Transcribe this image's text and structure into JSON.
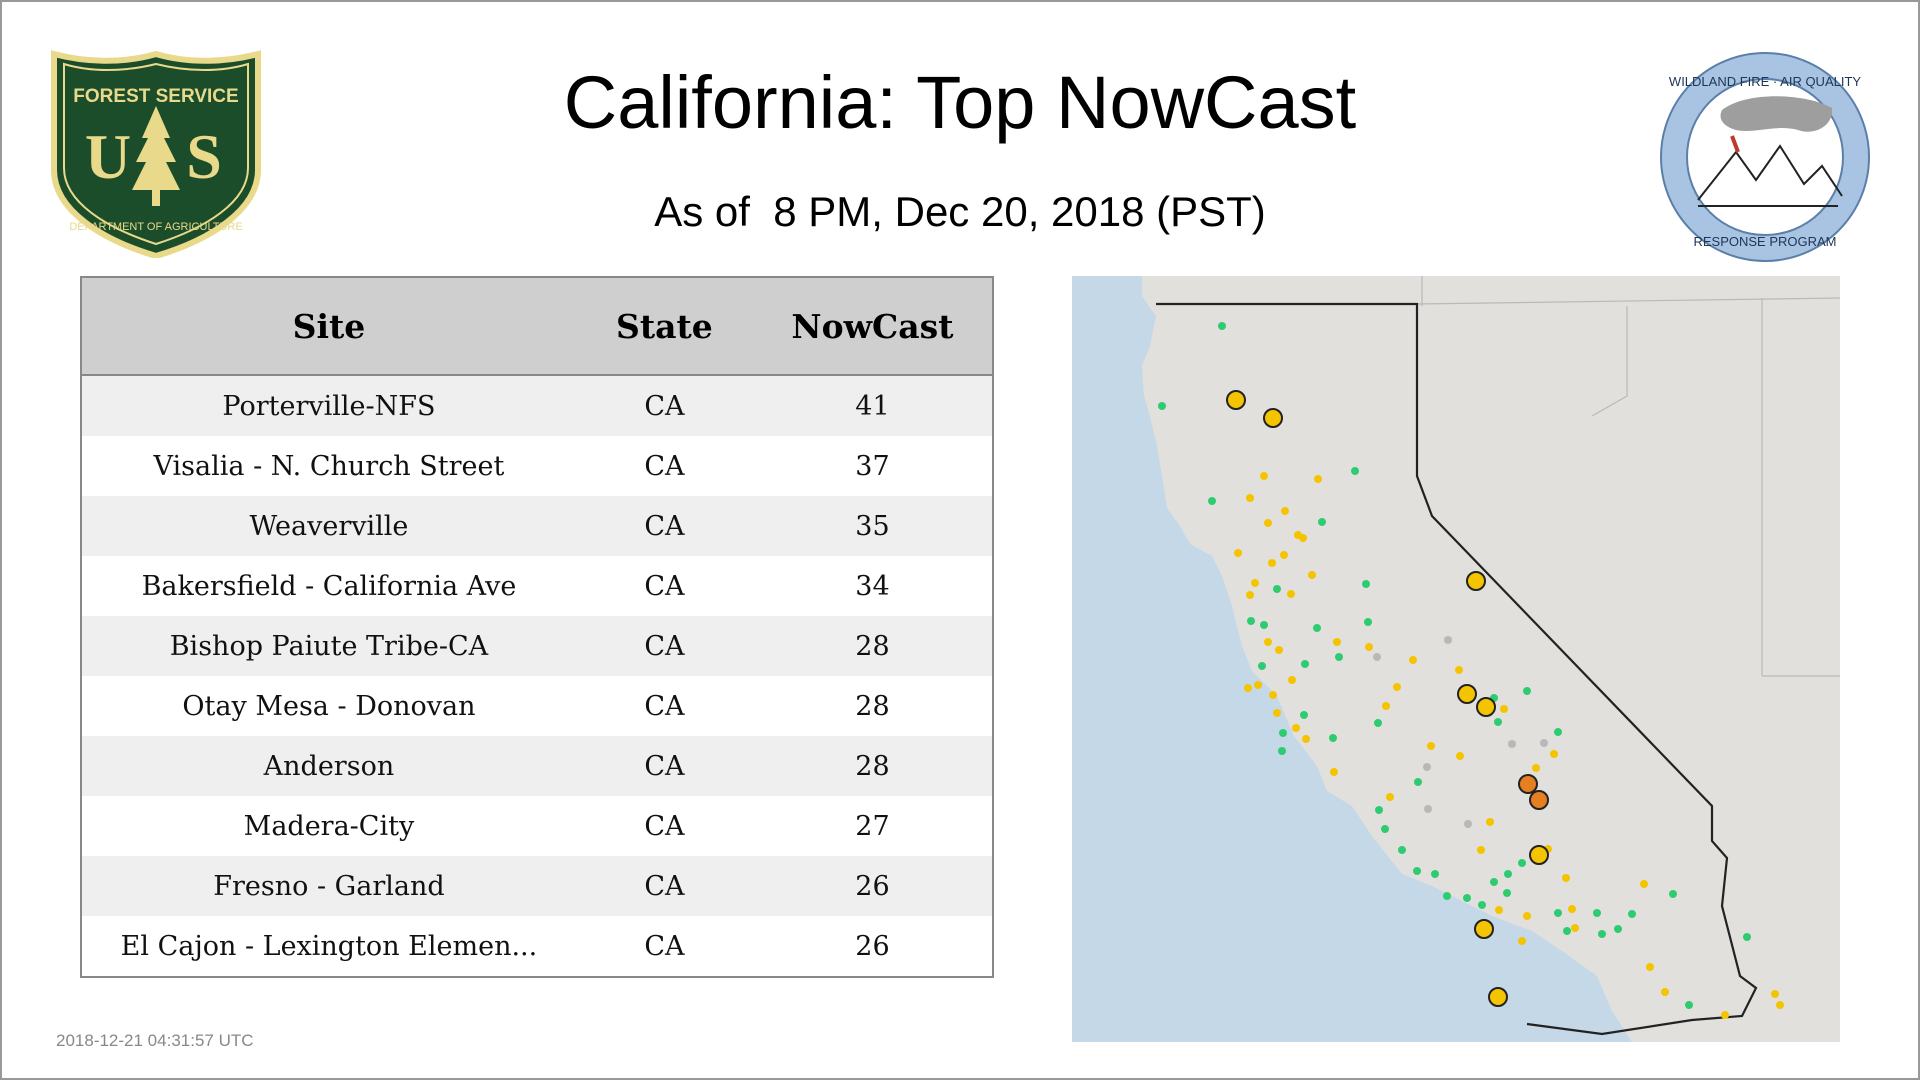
{
  "header": {
    "title": "California: Top NowCast",
    "subtitle": "As of  8 PM, Dec 20, 2018 (PST)"
  },
  "logos": {
    "left": {
      "icon": "forest-service-shield-icon",
      "top_text": "FOREST SERVICE",
      "letters": "U S",
      "bottom_text": "DEPARTMENT OF AGRICULTURE"
    },
    "right": {
      "icon": "wildland-fire-air-quality-icon",
      "top_text": "WILDLAND FIRE · AIR QUALITY",
      "bottom_text": "RESPONSE PROGRAM"
    }
  },
  "table": {
    "columns": [
      "Site",
      "State",
      "NowCast"
    ],
    "rows": [
      {
        "site": "Porterville-NFS",
        "state": "CA",
        "nowcast": "41"
      },
      {
        "site": "Visalia - N. Church Street",
        "state": "CA",
        "nowcast": "37"
      },
      {
        "site": "Weaverville",
        "state": "CA",
        "nowcast": "35"
      },
      {
        "site": "Bakersfield - California Ave",
        "state": "CA",
        "nowcast": "34"
      },
      {
        "site": "Bishop Paiute Tribe-CA",
        "state": "CA",
        "nowcast": "28"
      },
      {
        "site": "Otay Mesa - Donovan",
        "state": "CA",
        "nowcast": "28"
      },
      {
        "site": "Anderson",
        "state": "CA",
        "nowcast": "28"
      },
      {
        "site": "Madera-City",
        "state": "CA",
        "nowcast": "27"
      },
      {
        "site": "Fresno - Garland",
        "state": "CA",
        "nowcast": "26"
      },
      {
        "site": "El Cajon - Lexington Elemen...",
        "state": "CA",
        "nowcast": "26"
      }
    ]
  },
  "map": {
    "colors": {
      "ocean": "#c5d8e8",
      "land": "#e2e0dd",
      "good": "#2ecc71",
      "moderate": "#f5c400",
      "usg": "#e67e22",
      "missing": "#b8b8b8"
    },
    "large_markers": [
      {
        "category": "moderate"
      },
      {
        "category": "moderate"
      },
      {
        "category": "moderate"
      },
      {
        "category": "moderate"
      },
      {
        "category": "moderate"
      },
      {
        "category": "usg"
      },
      {
        "category": "usg"
      },
      {
        "category": "moderate"
      },
      {
        "category": "moderate"
      },
      {
        "category": "moderate"
      }
    ]
  },
  "footer": {
    "timestamp": "2018-12-21 04:31:57 UTC"
  }
}
